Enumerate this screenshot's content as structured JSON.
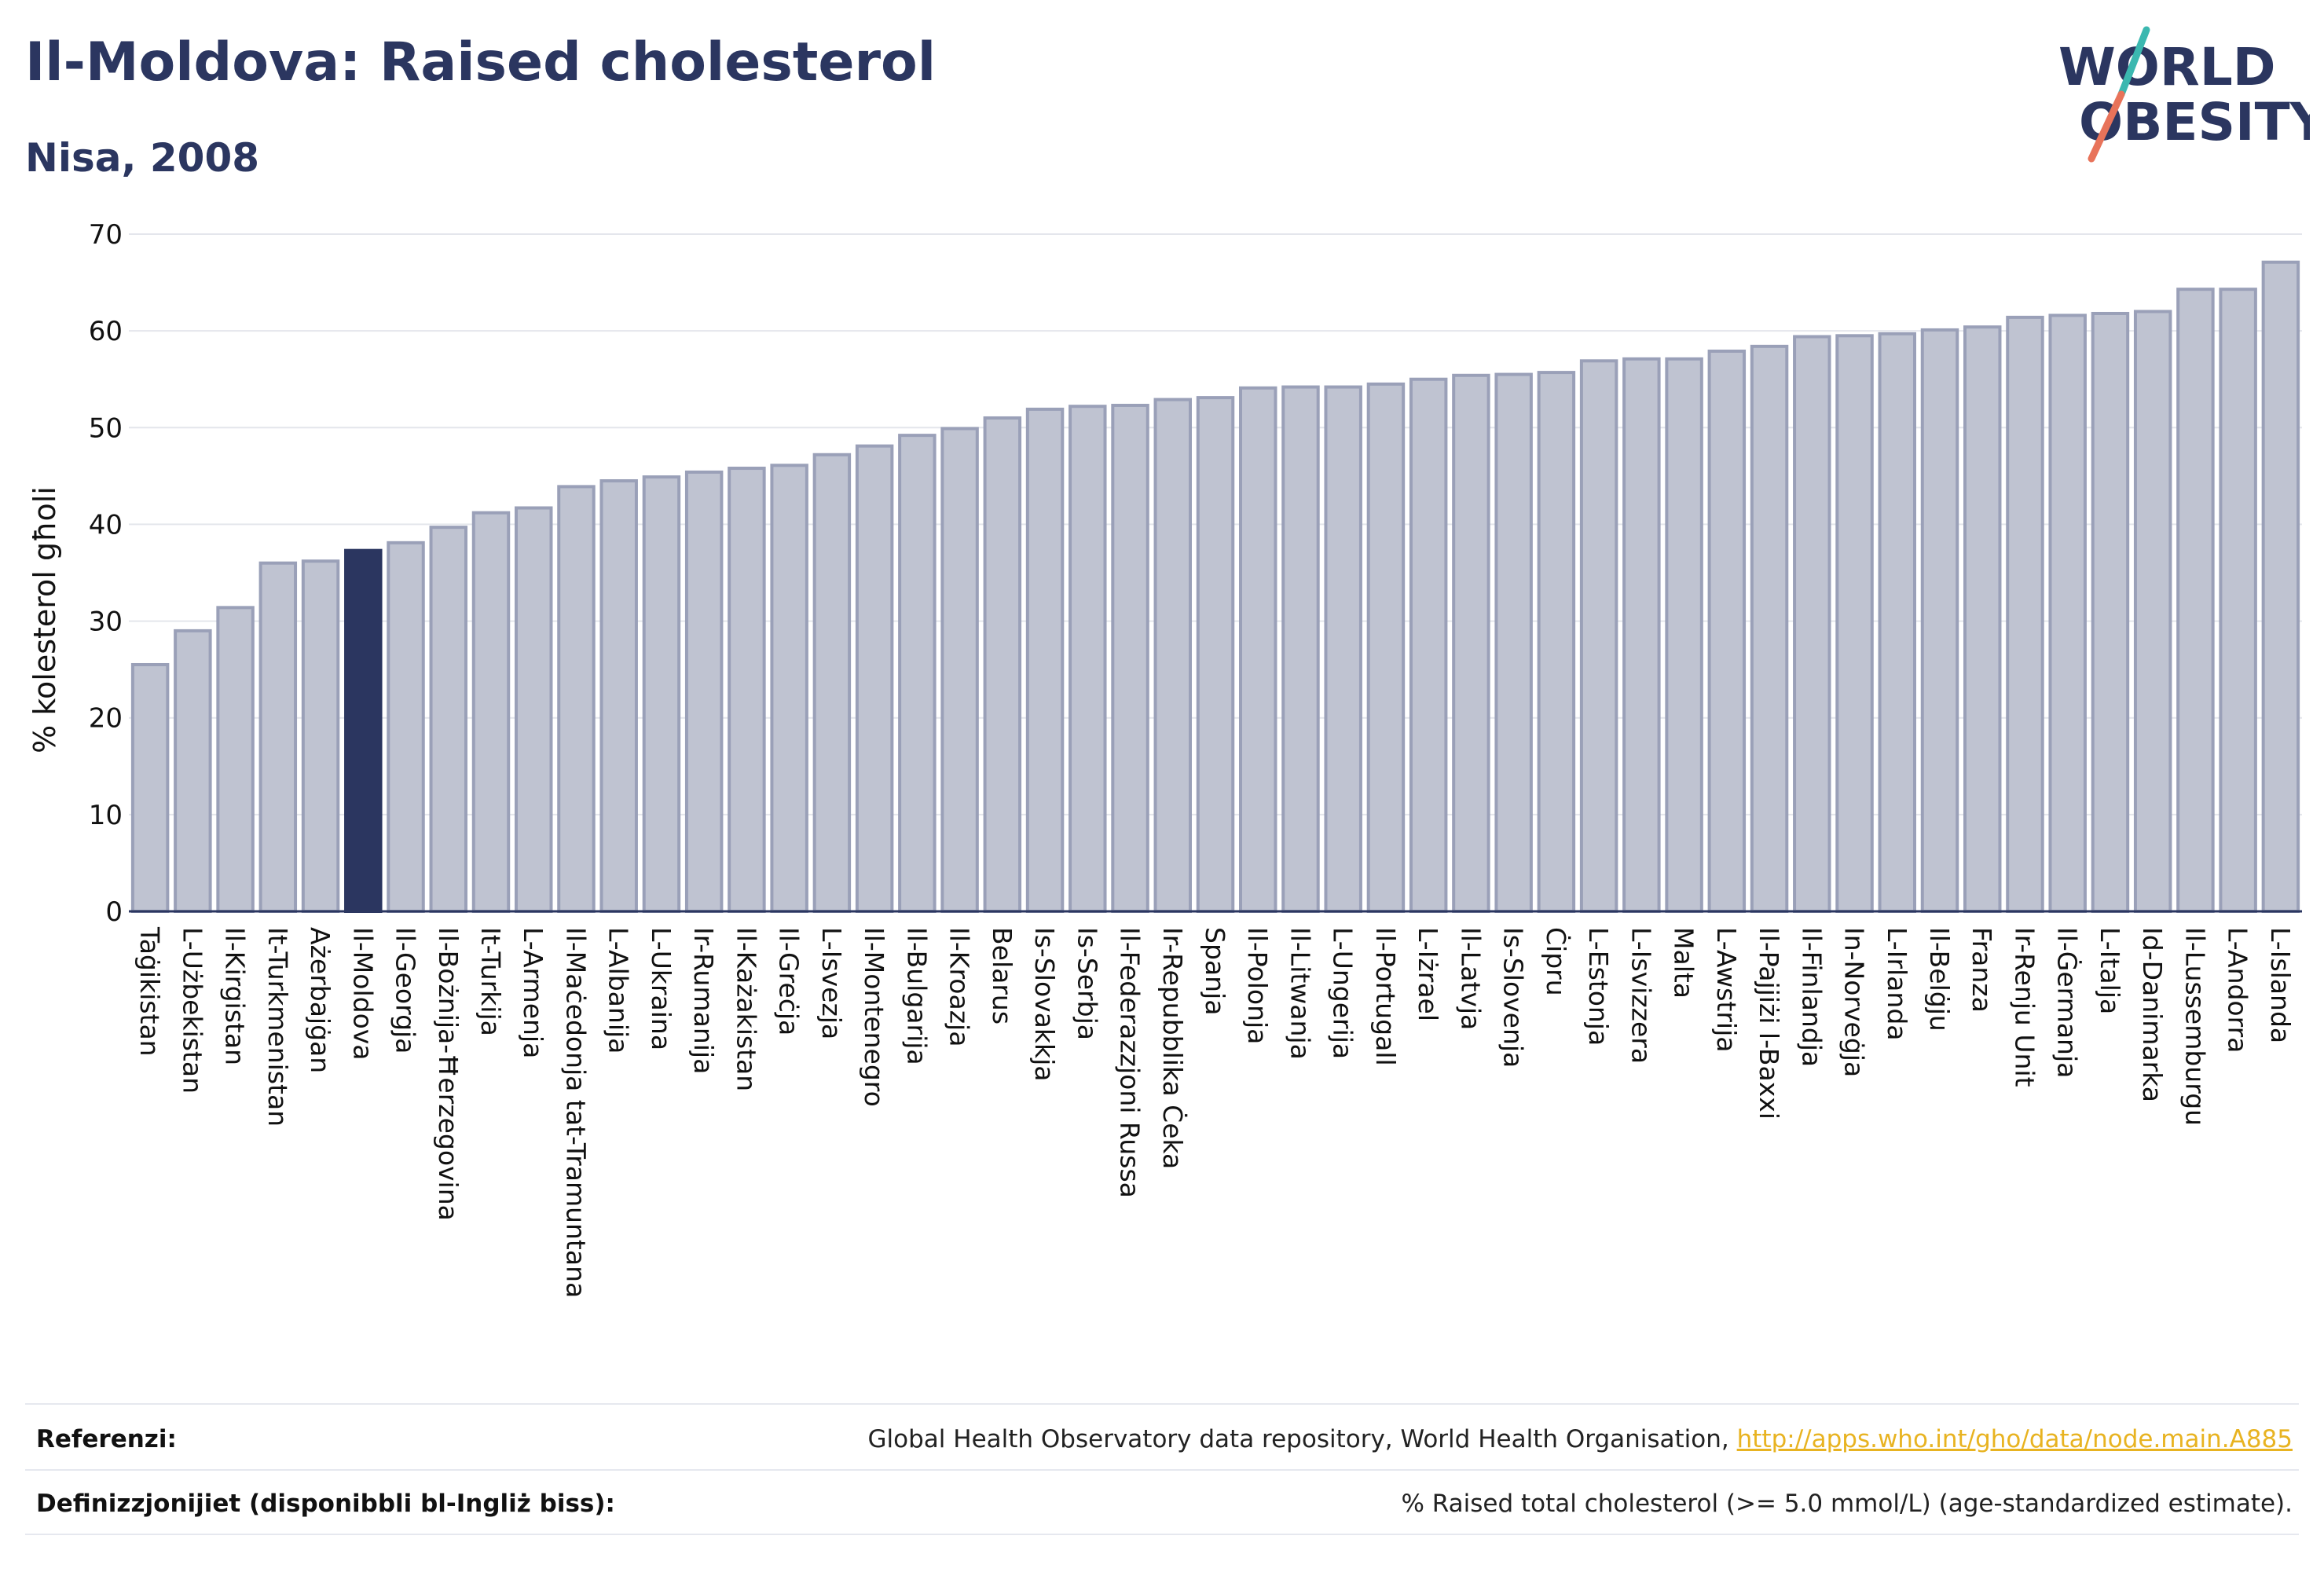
{
  "header": {
    "title": "Il-Moldova: Raised cholesterol",
    "subtitle": "Nisa, 2008"
  },
  "logo": {
    "line1": "WORLD",
    "line2": "OBESITY",
    "text_color": "#2b3660",
    "slash_color_top": "#3bb8b0",
    "slash_color_bottom": "#e8735a"
  },
  "colors": {
    "bar_fill": "#bfc3d1",
    "bar_stroke": "#9aa0b8",
    "highlight_fill": "#2b3660",
    "grid": "#e4e6ec",
    "axis": "#2b3660"
  },
  "chart_data": {
    "type": "bar",
    "ylabel": "% kolesterol għoli",
    "ylim": [
      0,
      70
    ],
    "yticks": [
      0,
      10,
      20,
      30,
      40,
      50,
      60,
      70
    ],
    "grid": true,
    "highlight": "Il-Moldova",
    "categories": [
      "Taġikistan",
      "L-Użbekistan",
      "Il-Kirgistan",
      "It-Turkmenistan",
      "Ażerbajġan",
      "Il-Moldova",
      "Il-Georgja",
      "Il-Bożnija-Ħerzegovina",
      "It-Turkija",
      "L-Armenja",
      "Il-Maċedonja tat-Tramuntana",
      "L-Albanija",
      "L-Ukraina",
      "Ir-Rumanija",
      "Il-Każakistan",
      "Il-Greċja",
      "L-Isvezja",
      "Il-Montenegro",
      "Il-Bulgarija",
      "Il-Kroazja",
      "Belarus",
      "Is-Slovakkja",
      "Is-Serbja",
      "Il-Federazzjoni Russa",
      "Ir-Repubblika Ċeka",
      "Spanja",
      "Il-Polonja",
      "Il-Litwanja",
      "L-Ungerija",
      "Il-Portugall",
      "L-Iżrael",
      "Il-Latvja",
      "Is-Slovenja",
      "Ċipru",
      "L-Estonja",
      "L-Isvizzera",
      "Malta",
      "L-Awstrija",
      "Il-Pajjiżi l-Baxxi",
      "Il-Finlandja",
      "In-Norveġja",
      "L-Irlanda",
      "Il-Belġju",
      "Franza",
      "Ir-Renju Unit",
      "Il-Ġermanja",
      "L-Italja",
      "Id-Danimarka",
      "Il-Lussemburgu",
      "L-Andorra",
      "L-Islanda"
    ],
    "values": [
      25.5,
      29.0,
      31.4,
      36.0,
      36.2,
      37.3,
      38.1,
      39.7,
      41.2,
      41.7,
      43.9,
      44.5,
      44.9,
      45.4,
      45.8,
      46.1,
      47.2,
      48.1,
      49.2,
      49.9,
      51.0,
      51.9,
      52.2,
      52.3,
      52.9,
      53.1,
      54.1,
      54.2,
      54.2,
      54.5,
      55.0,
      55.4,
      55.5,
      55.7,
      56.9,
      57.1,
      57.1,
      57.9,
      58.4,
      59.4,
      59.5,
      59.7,
      60.1,
      60.4,
      61.4,
      61.6,
      61.8,
      62.0,
      64.3,
      64.3,
      67.1
    ]
  },
  "footer": {
    "sources_label": "Referenzi:",
    "sources_text": "Global Health Observatory data repository, World Health Organisation, ",
    "sources_link": "http://apps.who.int/gho/data/node.main.A885",
    "definitions_label": "Definizzjonijiet (disponibbli bl-Ingliż biss):",
    "definitions_text": "% Raised total cholesterol (>= 5.0 mmol/L) (age-standardized estimate)."
  }
}
